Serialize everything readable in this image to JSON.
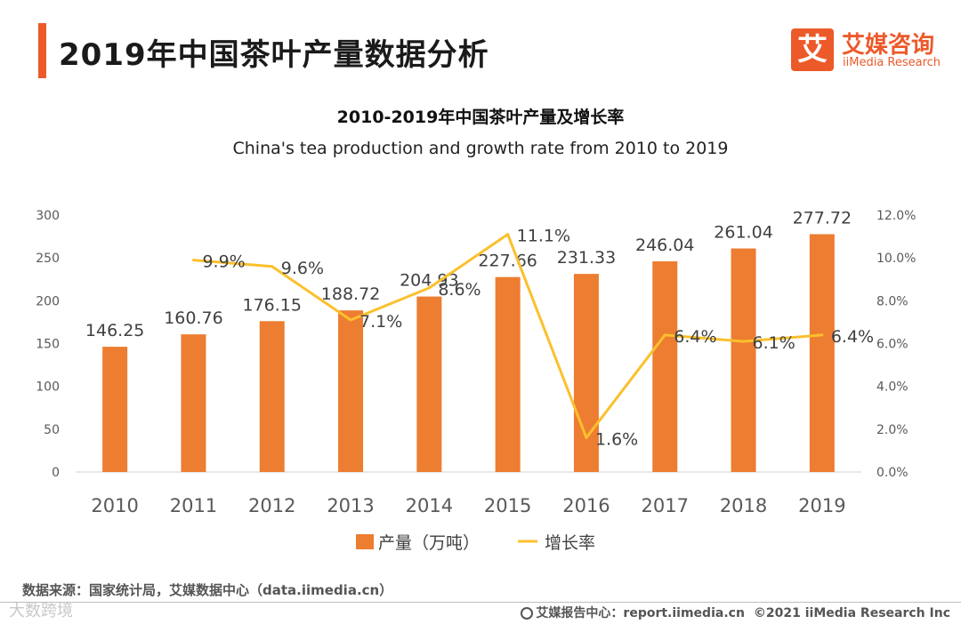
{
  "page_title": "2019年中国茶叶产量数据分析",
  "logo": {
    "cn": "艾媒咨询",
    "en": "iiMedia Research",
    "mark": "艾"
  },
  "source": "数据来源：国家统计局，艾媒数据中心（data.iimedia.cn）",
  "watermark": "大数跨境",
  "footer": {
    "site": "艾媒报告中心：report.iimedia.cn",
    "copyright": "©2021  iiMedia Research  Inc"
  },
  "colors": {
    "accent": "#ec5a2a",
    "bar": "#ed7d31",
    "line": "#fbc02d"
  },
  "chart_data": {
    "type": "bar",
    "title": "2010-2019年中国茶叶产量及增长率",
    "subtitle": "China's tea production and growth rate from 2010 to 2019",
    "categories": [
      "2010",
      "2011",
      "2012",
      "2013",
      "2014",
      "2015",
      "2016",
      "2017",
      "2018",
      "2019"
    ],
    "series": [
      {
        "name": "产量（万吨）",
        "type": "bar",
        "axis": "left",
        "values": [
          146.25,
          160.76,
          176.15,
          188.72,
          204.93,
          227.66,
          231.33,
          246.04,
          261.04,
          277.72
        ],
        "labels": [
          "146.25",
          "160.76",
          "176.15",
          "188.72",
          "204.93",
          "227.66",
          "231.33",
          "246.04",
          "261.04",
          "277.72"
        ]
      },
      {
        "name": "增长率",
        "type": "line",
        "axis": "right",
        "values": [
          null,
          9.9,
          9.6,
          7.1,
          8.6,
          11.1,
          1.6,
          6.4,
          6.1,
          6.4
        ],
        "labels": [
          "",
          "9.9%",
          "9.6%",
          "7.1%",
          "8.6%",
          "11.1%",
          "1.6%",
          "6.4%",
          "6.1%",
          "6.4%"
        ]
      }
    ],
    "y_left": {
      "min": 0,
      "max": 300,
      "ticks": [
        "0",
        "50",
        "100",
        "150",
        "200",
        "250",
        "300"
      ]
    },
    "y_right": {
      "min": 0,
      "max": 12,
      "ticks": [
        "0.0%",
        "2.0%",
        "4.0%",
        "6.0%",
        "8.0%",
        "10.0%",
        "12.0%"
      ]
    },
    "legend": [
      {
        "label": "产量（万吨）",
        "kind": "bar"
      },
      {
        "label": "增长率",
        "kind": "line"
      }
    ],
    "legend_position": "bottom",
    "grid": false
  }
}
